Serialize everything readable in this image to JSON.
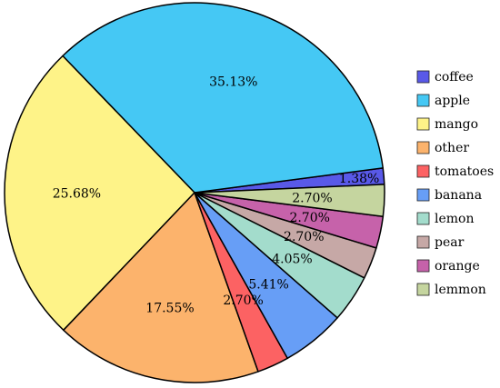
{
  "chart_data": {
    "type": "pie",
    "title": "",
    "slices": [
      {
        "label": "coffee",
        "value": 1.38,
        "value_label": "1.38%",
        "color": "#5959e8"
      },
      {
        "label": "apple",
        "value": 35.13,
        "value_label": "35.13%",
        "color": "#45c8f4"
      },
      {
        "label": "mango",
        "value": 25.68,
        "value_label": "25.68%",
        "color": "#fef388"
      },
      {
        "label": "other",
        "value": 17.55,
        "value_label": "17.55%",
        "color": "#fcb36c"
      },
      {
        "label": "tomatoes",
        "value": 2.7,
        "value_label": "2.70%",
        "color": "#fc6263"
      },
      {
        "label": "banana",
        "value": 5.41,
        "value_label": "5.41%",
        "color": "#679ef6"
      },
      {
        "label": "lemon",
        "value": 4.05,
        "value_label": "4.05%",
        "color": "#a3dccc"
      },
      {
        "label": "pear",
        "value": 2.7,
        "value_label": "2.70%",
        "color": "#c6a8a6"
      },
      {
        "label": "orange",
        "value": 2.7,
        "value_label": "2.70%",
        "color": "#c662aa"
      },
      {
        "label": "lemmon",
        "value": 2.7,
        "value_label": "2.70%",
        "color": "#c5d59f"
      }
    ],
    "start_angle_deg": 2.5,
    "direction": "counterclockwise",
    "legend": "right",
    "slice_border_color": "#000000"
  }
}
